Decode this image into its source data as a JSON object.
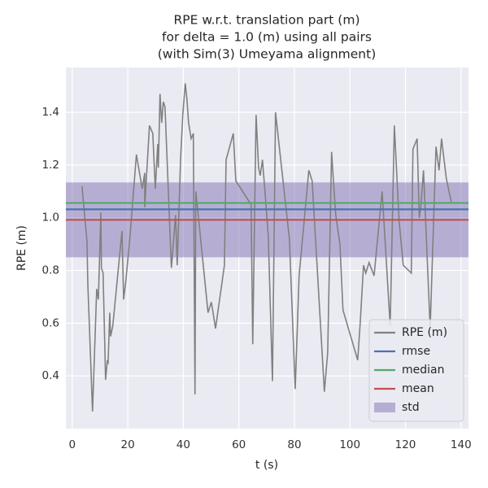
{
  "chart_data": {
    "type": "line",
    "title": [
      "RPE w.r.t. translation part (m)",
      "for delta = 1.0 (m) using all pairs",
      "(with Sim(3) Umeyama alignment)"
    ],
    "x_label": "t (s)",
    "y_label": "RPE (m)",
    "xlim": [
      -2.3,
      142.7
    ],
    "ylim": [
      0.2,
      1.57
    ],
    "xticks": [
      0,
      20,
      40,
      60,
      80,
      100,
      120,
      140
    ],
    "yticks": [
      0.4,
      0.6,
      0.8,
      {
        "value": 1.0,
        "label": "1.0"
      },
      1.2,
      1.4
    ],
    "grid": true,
    "legend": "lower right",
    "series": [
      {
        "name": "RPE (m)",
        "color": "#808080",
        "x": [
          3.5,
          5.3,
          5.6,
          7.3,
          8.8,
          9.4,
          10.3,
          10.5,
          11.1,
          12,
          12.6,
          12.9,
          13.5,
          13.8,
          14.6,
          17.9,
          18.5,
          19.3,
          20.8,
          23.1,
          25.2,
          26.1,
          26.1,
          27.8,
          29,
          29.9,
          30.8,
          31,
          31.6,
          32.2,
          32.8,
          33.4,
          35.7,
          37.2,
          37.8,
          39,
          39.8,
          40.7,
          41.3,
          41.9,
          42.8,
          43.6,
          44.2,
          44.5,
          48.9,
          50.1,
          51.6,
          54.8,
          55.4,
          58,
          58.9,
          64.4,
          65,
          66.2,
          67.1,
          67.7,
          68.5,
          69.4,
          70.6,
          72.1,
          73.2,
          78.2,
          80.3,
          81.7,
          85.2,
          86.4,
          90.8,
          92,
          93.4,
          94,
          94.9,
          96.4,
          97.5,
          102.8,
          103.7,
          104.9,
          105.7,
          106.9,
          108.7,
          111.6,
          114.5,
          116,
          117.7,
          119.2,
          122.1,
          122.7,
          124.2,
          125,
          125.6,
          126.5,
          128.9,
          131,
          132.1,
          133,
          134.7,
          136.5
        ],
        "values": [
          1.12,
          0.91,
          0.75,
          0.265,
          0.73,
          0.69,
          1.02,
          0.81,
          0.79,
          0.385,
          0.455,
          0.45,
          0.64,
          0.55,
          0.59,
          0.95,
          0.69,
          0.76,
          0.93,
          1.24,
          1.11,
          1.17,
          1.04,
          1.35,
          1.32,
          1.11,
          1.28,
          1.19,
          1.47,
          1.36,
          1.44,
          1.42,
          0.81,
          1.01,
          0.82,
          1.22,
          1.39,
          1.51,
          1.45,
          1.36,
          1.3,
          1.32,
          0.33,
          1.1,
          0.64,
          0.68,
          0.58,
          0.82,
          1.22,
          1.32,
          1.14,
          1.05,
          0.52,
          1.39,
          1.19,
          1.16,
          1.22,
          1.1,
          0.93,
          0.38,
          1.4,
          0.92,
          0.35,
          0.78,
          1.18,
          1.14,
          0.34,
          0.49,
          1.25,
          1.15,
          1.01,
          0.9,
          0.65,
          0.46,
          0.6,
          0.82,
          0.79,
          0.83,
          0.78,
          1.1,
          0.59,
          1.35,
          0.99,
          0.82,
          0.79,
          1.26,
          1.3,
          1.0,
          1.05,
          1.18,
          0.58,
          1.27,
          1.18,
          1.3,
          1.15,
          1.06
        ]
      }
    ],
    "stats": [
      {
        "name": "rmse",
        "color": "#4c72b0",
        "value": 1.032
      },
      {
        "name": "median",
        "color": "#55a868",
        "value": 1.056
      },
      {
        "name": "mean",
        "color": "#c44e52",
        "value": 0.992
      }
    ],
    "std": {
      "name": "std",
      "color": "#8172b2",
      "value": 0.142
    }
  }
}
